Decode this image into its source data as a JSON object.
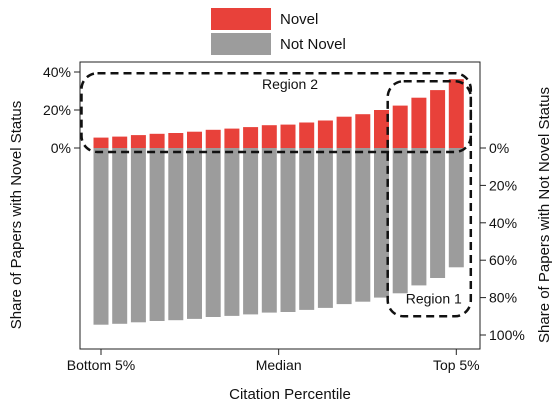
{
  "chart_data": {
    "type": "bar",
    "xlabel": "Citation Percentile",
    "ylabel_left": "Share of Papers with Novel Status",
    "ylabel_right": "Share of Papers with Not Novel Status",
    "x_ticks": [
      {
        "label": "Bottom 5%",
        "bin": 1
      },
      {
        "label": "Median",
        "bin": 10.5
      },
      {
        "label": "Top 5%",
        "bin": 20
      }
    ],
    "y_left_ticks": [
      {
        "label": "40%",
        "value": 40
      },
      {
        "label": "20%",
        "value": 20
      },
      {
        "label": "0%",
        "value": 0
      }
    ],
    "y_right_ticks": [
      {
        "label": "0%",
        "value": 0
      },
      {
        "label": "20%",
        "value": 20
      },
      {
        "label": "40%",
        "value": 40
      },
      {
        "label": "60%",
        "value": 60
      },
      {
        "label": "80%",
        "value": 80
      },
      {
        "label": "100%",
        "value": 100
      }
    ],
    "ylim_left": [
      0,
      42
    ],
    "ylim_right": [
      0,
      105
    ],
    "bins": [
      1,
      2,
      3,
      4,
      5,
      6,
      7,
      8,
      9,
      10,
      11,
      12,
      13,
      14,
      15,
      16,
      17,
      18,
      19,
      20
    ],
    "series": [
      {
        "name": "Novel",
        "color": "#e8413a",
        "axis": "left",
        "values": [
          5.5,
          6,
          6.8,
          7.5,
          7.9,
          8.6,
          9.6,
          10.2,
          11,
          12,
          12.3,
          13.4,
          14.5,
          16.5,
          17.8,
          20,
          22.3,
          26.5,
          30.5,
          36.2
        ]
      },
      {
        "name": "Not Novel",
        "color": "#9c9c9c",
        "axis": "right",
        "values": [
          94.5,
          94,
          93.2,
          92.5,
          92.1,
          91.4,
          90.4,
          89.8,
          89,
          88,
          87.7,
          86.6,
          85.5,
          83.5,
          82.2,
          80,
          77.7,
          73.5,
          69.5,
          63.8
        ]
      }
    ],
    "legend": {
      "position": "top-center",
      "entries": [
        "Novel",
        "Not Novel"
      ]
    },
    "annotations": [
      {
        "label": "Region 2",
        "bins": [
          1,
          20
        ],
        "covers": "Novel"
      },
      {
        "label": "Region 1",
        "bins": [
          17,
          20
        ],
        "covers": "Not Novel"
      }
    ],
    "grid": false
  }
}
